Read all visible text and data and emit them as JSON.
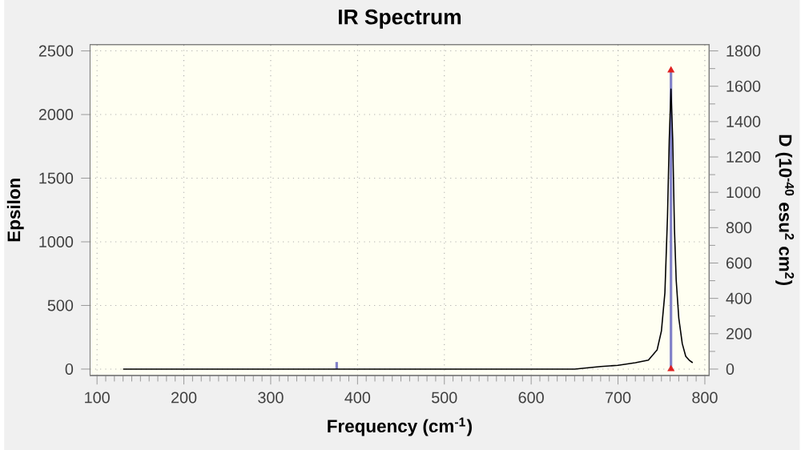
{
  "chart_data": {
    "type": "line",
    "title": "IR Spectrum",
    "xlabel": "Frequency (cm$^{-1}$)",
    "ylabel": "Epsilon",
    "y2label": "D (10$^{-40}$ esu$^{2}$ cm$^{2}$)",
    "xlim": [
      92,
      805
    ],
    "xticks": [
      100,
      200,
      300,
      400,
      500,
      600,
      700,
      800
    ],
    "ylim": [
      -50,
      2550
    ],
    "yticks": [
      0,
      500,
      1000,
      1500,
      2000,
      2500
    ],
    "y2lim": [
      -36,
      1836
    ],
    "y2ticks": [
      0,
      200,
      400,
      600,
      800,
      1000,
      1200,
      1400,
      1600,
      1800
    ],
    "grid": true,
    "series": [
      {
        "color": "#000000",
        "x": [
          130,
          300,
          500,
          600,
          650,
          680,
          700,
          720,
          735,
          745,
          750,
          754,
          757,
          759,
          761,
          763,
          765,
          767,
          770,
          774,
          778,
          782,
          786
        ],
        "values": [
          0,
          0,
          0,
          0,
          0,
          20,
          30,
          50,
          70,
          150,
          300,
          600,
          1200,
          1800,
          2200,
          1800,
          1100,
          700,
          400,
          200,
          100,
          70,
          50
        ]
      },
      {
        "type": "bar",
        "axis": "y2",
        "color": "#8080c8",
        "x": [
          376,
          761
        ],
        "values": [
          40,
          1690
        ]
      },
      {
        "type": "scatter",
        "axis": "y2",
        "marker": "triangle",
        "color": "#e02020",
        "x": [
          761,
          761
        ],
        "values": [
          0,
          1690
        ]
      }
    ]
  }
}
